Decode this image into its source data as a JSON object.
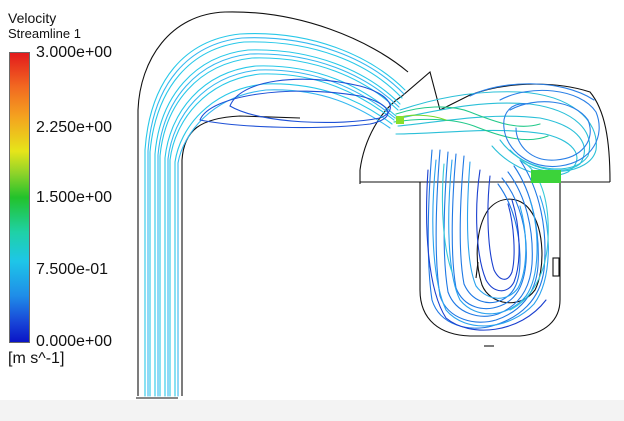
{
  "legend": {
    "title": "Velocity",
    "subtitle": "Streamline 1",
    "ticks": [
      "3.000e+00",
      "2.250e+00",
      "1.500e+00",
      "7.500e-01",
      "0.000e+00"
    ],
    "units": "[m s^-1]"
  },
  "colors": {
    "max": "#e31a1c",
    "mid_high": "#e6e51a",
    "mid": "#22c22b",
    "mid_low": "#1ec6e8",
    "min": "#0a14c6",
    "geometry_outline": "#111111",
    "hot_region": "#3cd33a"
  }
}
